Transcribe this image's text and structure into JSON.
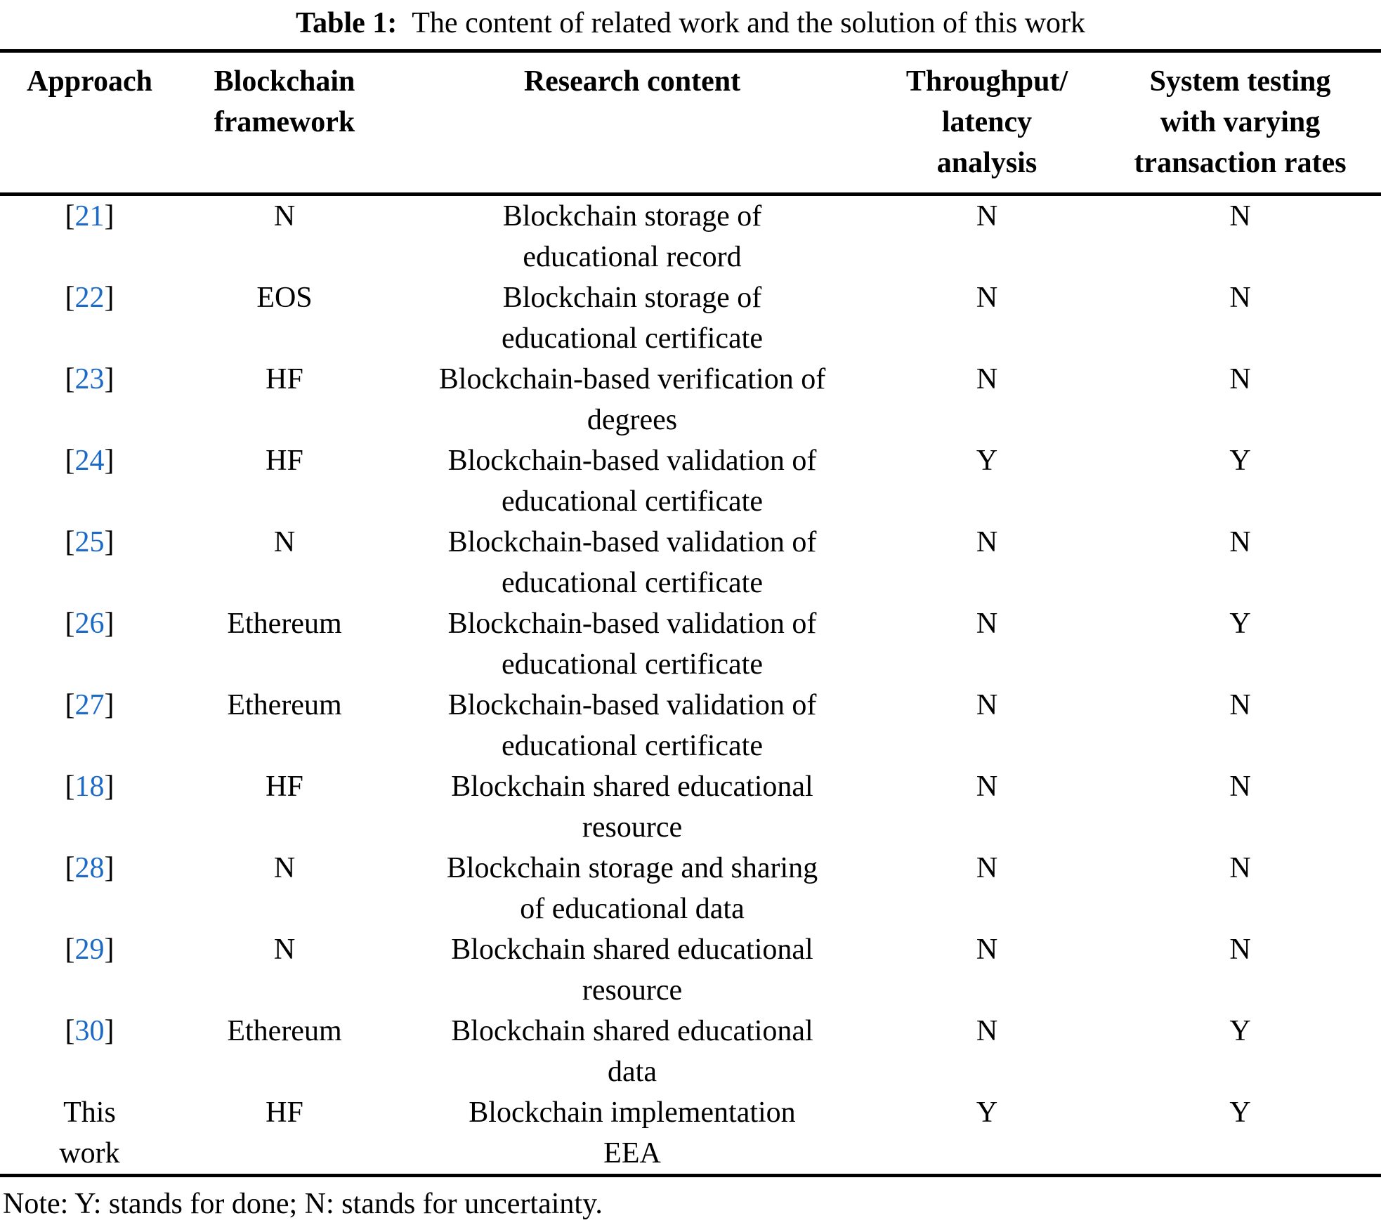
{
  "title": {
    "label": "Table 1:",
    "text": "The content of related work and the solution of this work"
  },
  "colors": {
    "citation_blue": "#1b6ac8",
    "text": "#000000",
    "rule": "#000000",
    "background": "#ffffff"
  },
  "table": {
    "columns": [
      {
        "lines": [
          "Approach"
        ]
      },
      {
        "lines": [
          "Blockchain",
          "framework"
        ]
      },
      {
        "lines": [
          "Research content"
        ]
      },
      {
        "lines": [
          "Throughput/",
          "latency",
          "analysis"
        ]
      },
      {
        "lines": [
          "System testing",
          "with varying",
          "transaction rates"
        ]
      }
    ],
    "rows": [
      {
        "ref": "21",
        "framework": "N",
        "content": [
          "Blockchain storage of",
          "educational record"
        ],
        "throughput": "N",
        "testing": "N"
      },
      {
        "ref": "22",
        "framework": "EOS",
        "content": [
          "Blockchain storage of",
          "educational certificate"
        ],
        "throughput": "N",
        "testing": "N"
      },
      {
        "ref": "23",
        "framework": "HF",
        "content": [
          "Blockchain-based verification of",
          "degrees"
        ],
        "throughput": "N",
        "testing": "N"
      },
      {
        "ref": "24",
        "framework": "HF",
        "content": [
          "Blockchain-based validation of",
          "educational certificate"
        ],
        "throughput": "Y",
        "testing": "Y"
      },
      {
        "ref": "25",
        "framework": "N",
        "content": [
          "Blockchain-based validation of",
          "educational certificate"
        ],
        "throughput": "N",
        "testing": "N"
      },
      {
        "ref": "26",
        "framework": "Ethereum",
        "content": [
          "Blockchain-based validation of",
          "educational certificate"
        ],
        "throughput": "N",
        "testing": "Y"
      },
      {
        "ref": "27",
        "framework": "Ethereum",
        "content": [
          "Blockchain-based validation of",
          "educational certificate"
        ],
        "throughput": "N",
        "testing": "N"
      },
      {
        "ref": "18",
        "framework": "HF",
        "content": [
          "Blockchain shared educational",
          "resource"
        ],
        "throughput": "N",
        "testing": "N"
      },
      {
        "ref": "28",
        "framework": "N",
        "content": [
          "Blockchain storage and sharing",
          "of educational data"
        ],
        "throughput": "N",
        "testing": "N"
      },
      {
        "ref": "29",
        "framework": "N",
        "content": [
          "Blockchain shared educational",
          "resource"
        ],
        "throughput": "N",
        "testing": "N"
      },
      {
        "ref": "30",
        "framework": "Ethereum",
        "content": [
          "Blockchain shared educational",
          "data"
        ],
        "throughput": "N",
        "testing": "Y"
      },
      {
        "label": [
          "This",
          "work"
        ],
        "framework": "HF",
        "content": [
          "Blockchain implementation",
          "EEA"
        ],
        "throughput": "Y",
        "testing": "Y"
      }
    ]
  },
  "note": "Note: Y: stands for done; N: stands for uncertainty."
}
